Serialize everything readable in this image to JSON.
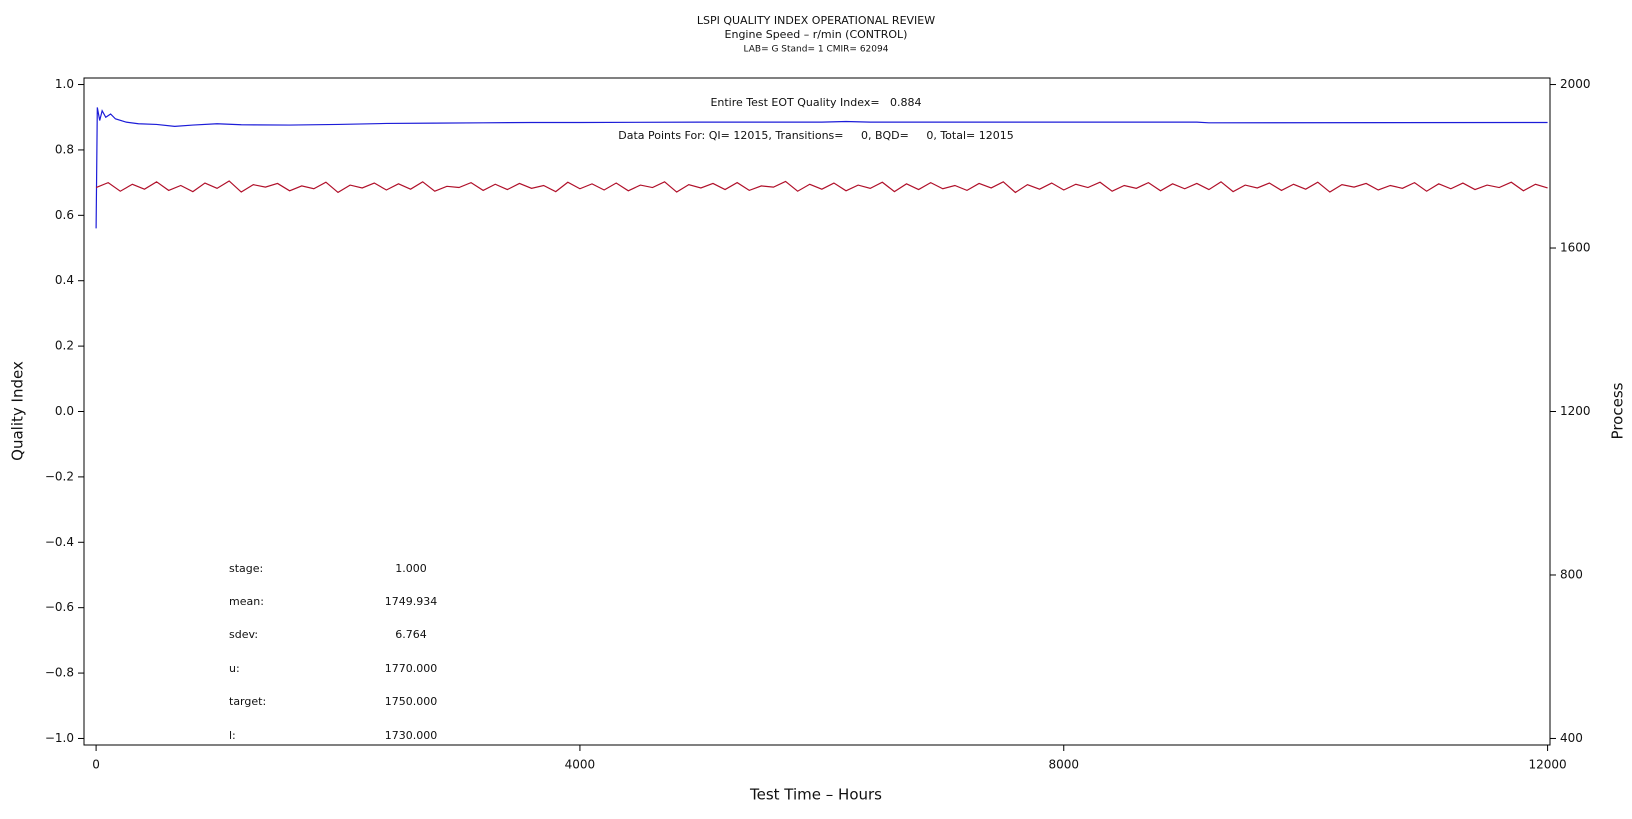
{
  "chart_data": {
    "type": "line",
    "title": "LSPI QUALITY INDEX OPERATIONAL REVIEW",
    "subtitle": "Engine Speed – r/min (CONTROL)",
    "subtitle2": "LAB= G Stand= 1 CMIR= 62094",
    "annotations": [
      "Entire Test EOT Quality Index=   0.884",
      "Data Points For: QI= 12015, Transitions=     0, BQD=     0, Total= 12015"
    ],
    "stats": [
      [
        "stage:",
        "1.000"
      ],
      [
        "mean:",
        "1749.934"
      ],
      [
        "sdev:",
        "6.764"
      ],
      [
        "u:",
        "1770.000"
      ],
      [
        "target:",
        "1750.000"
      ],
      [
        "l:",
        "1730.000"
      ]
    ],
    "xlabel": "Test Time – Hours",
    "ylabel": "Quality Index",
    "y2label": "Process",
    "xlim": [
      -100,
      12020
    ],
    "xticks": [
      0,
      4000,
      8000,
      12000
    ],
    "ylim": [
      -1.02,
      1.02
    ],
    "yticks": [
      {
        "value": -1,
        "label": "−1.0"
      },
      {
        "value": -0.8,
        "label": "−0.8"
      },
      {
        "value": -0.6,
        "label": "−0.6"
      },
      {
        "value": -0.4,
        "label": "−0.4"
      },
      {
        "value": -0.2,
        "label": "−0.2"
      },
      {
        "value": 0,
        "label": "0.0"
      },
      0.2,
      0.4,
      0.6,
      0.8,
      {
        "value": 1,
        "label": "1.0"
      }
    ],
    "y2lim": [
      384,
      2016
    ],
    "y2ticks": [
      400,
      800,
      1200,
      1600,
      2000
    ],
    "series": [
      {
        "name": "Quality Index",
        "color": "#1c1cd8",
        "x": [
          0,
          10,
          30,
          50,
          80,
          120,
          160,
          250,
          350,
          500,
          650,
          800,
          1000,
          1200,
          1600,
          2000,
          2400,
          2800,
          3200,
          3600,
          4000,
          5000,
          6000,
          6200,
          6400,
          9100,
          9200,
          12000
        ],
        "values": [
          0.56,
          0.93,
          0.89,
          0.92,
          0.9,
          0.91,
          0.895,
          0.885,
          0.88,
          0.878,
          0.872,
          0.876,
          0.88,
          0.877,
          0.876,
          0.878,
          0.881,
          0.882,
          0.883,
          0.884,
          0.884,
          0.885,
          0.885,
          0.887,
          0.885,
          0.885,
          0.883,
          0.884
        ]
      },
      {
        "name": "Process",
        "color": "#b0102a",
        "axis": "y2",
        "x": [
          0,
          100,
          200,
          300,
          400,
          500,
          600,
          700,
          800,
          900,
          1000,
          1100,
          1200,
          1300,
          1400,
          1500,
          1600,
          1700,
          1800,
          1900,
          2000,
          2100,
          2200,
          2300,
          2400,
          2500,
          2600,
          2700,
          2800,
          2900,
          3000,
          3100,
          3200,
          3300,
          3400,
          3500,
          3600,
          3700,
          3800,
          3900,
          4000,
          4100,
          4200,
          4300,
          4400,
          4500,
          4600,
          4700,
          4800,
          4900,
          5000,
          5100,
          5200,
          5300,
          5400,
          5500,
          5600,
          5700,
          5800,
          5900,
          6000,
          6100,
          6200,
          6300,
          6400,
          6500,
          6600,
          6700,
          6800,
          6900,
          7000,
          7100,
          7200,
          7300,
          7400,
          7500,
          7600,
          7700,
          7800,
          7900,
          8000,
          8100,
          8200,
          8300,
          8400,
          8500,
          8600,
          8700,
          8800,
          8900,
          9000,
          9100,
          9200,
          9300,
          9400,
          9500,
          9600,
          9700,
          9800,
          9900,
          10000,
          10100,
          10200,
          10300,
          10400,
          10500,
          10600,
          10700,
          10800,
          10900,
          11000,
          11100,
          11200,
          11300,
          11400,
          11500,
          11600,
          11700,
          11800,
          11900,
          12000
        ],
        "values": [
          1748,
          1760,
          1739,
          1756,
          1744,
          1762,
          1741,
          1753,
          1738,
          1759,
          1746,
          1764,
          1737,
          1755,
          1749,
          1758,
          1740,
          1752,
          1745,
          1761,
          1736,
          1754,
          1747,
          1759,
          1742,
          1757,
          1744,
          1762,
          1739,
          1751,
          1748,
          1760,
          1741,
          1756,
          1743,
          1758,
          1746,
          1753,
          1738,
          1761,
          1745,
          1757,
          1742,
          1759,
          1740,
          1754,
          1748,
          1762,
          1737,
          1755,
          1747,
          1758,
          1743,
          1760,
          1741,
          1752,
          1749,
          1763,
          1739,
          1756,
          1744,
          1759,
          1740,
          1754,
          1746,
          1761,
          1738,
          1757,
          1743,
          1760,
          1745,
          1753,
          1741,
          1758,
          1747,
          1762,
          1736,
          1755,
          1744,
          1759,
          1742,
          1756,
          1748,
          1761,
          1739,
          1753,
          1746,
          1760,
          1740,
          1757,
          1745,
          1758,
          1743,
          1762,
          1738,
          1754,
          1747,
          1759,
          1741,
          1756,
          1744,
          1761,
          1737,
          1755,
          1749,
          1758,
          1742,
          1753,
          1746,
          1760,
          1739,
          1757,
          1745,
          1759,
          1743,
          1754,
          1748,
          1761,
          1740,
          1756,
          1747
        ]
      }
    ]
  }
}
